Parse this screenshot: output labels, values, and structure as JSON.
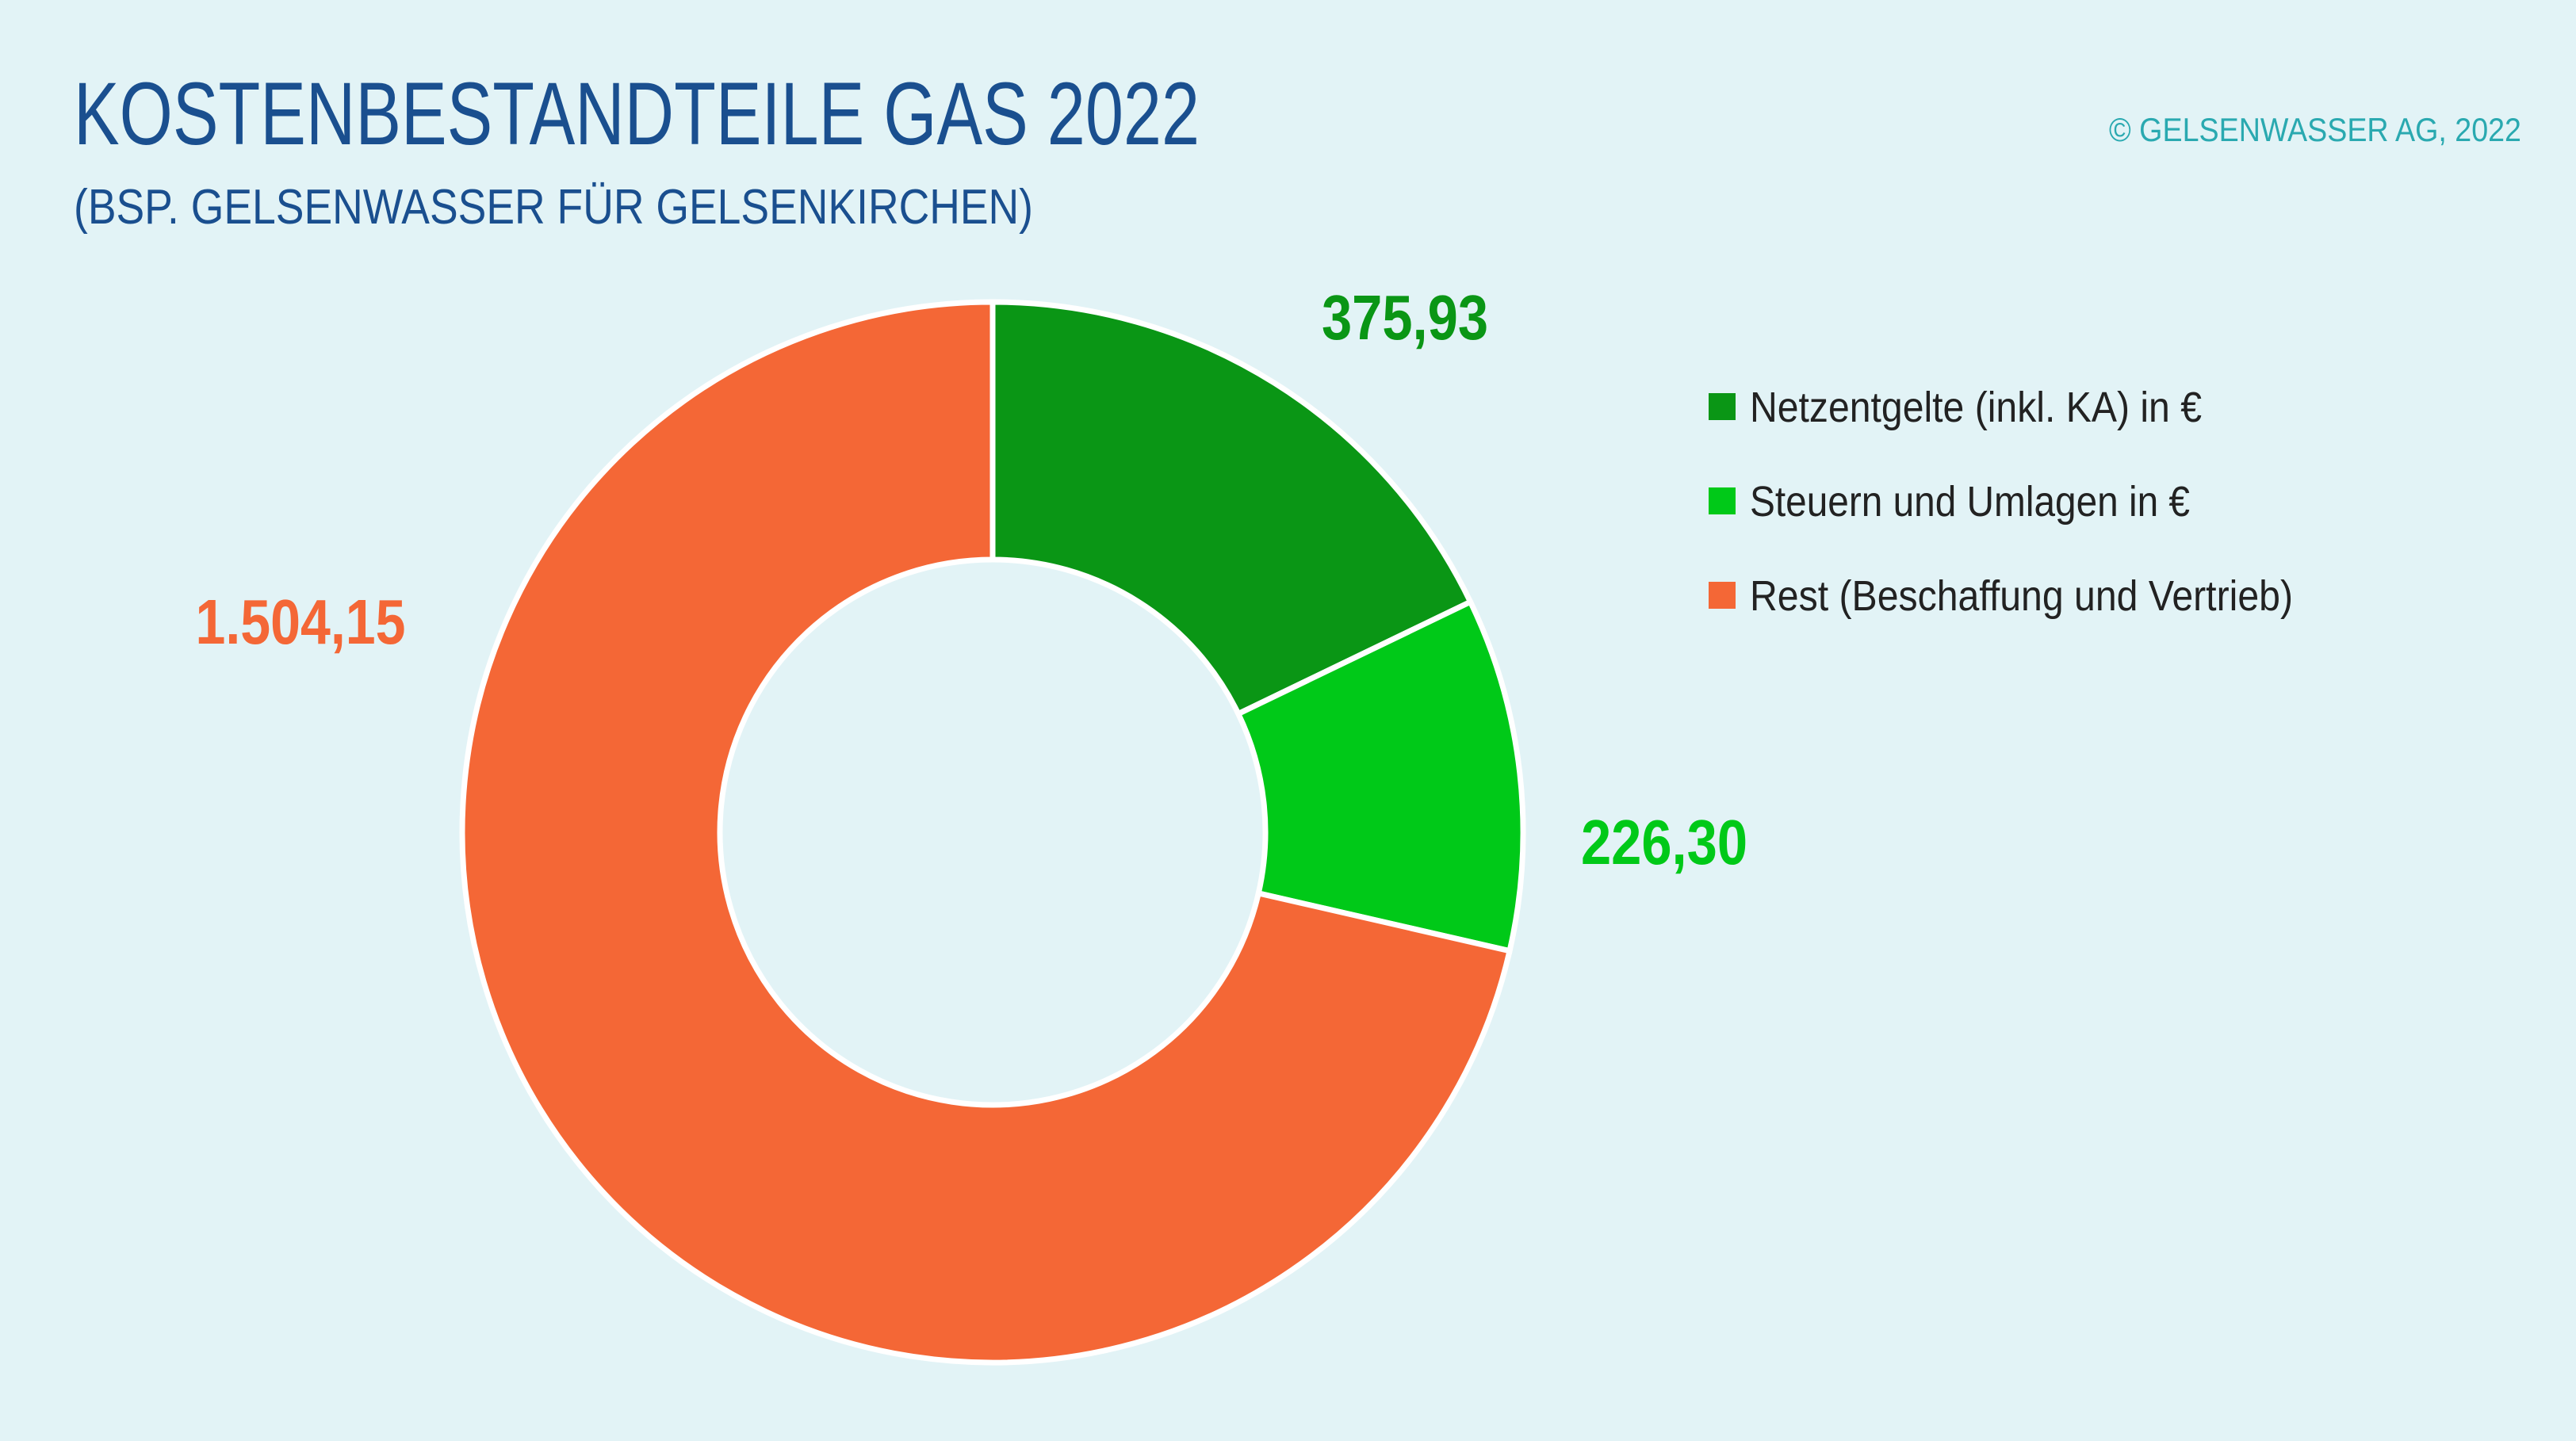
{
  "chart_data": {
    "type": "donut",
    "title": "KOSTENBESTANDTEILE GAS 2022",
    "subtitle": "(BSP. GELSENWASSER FÜR GELSENKIRCHEN)",
    "source": "© GELSENWASSER AG, 2022",
    "categories": [
      "Netzentgelte (inkl. KA) in €",
      "Steuern und Umlagen in €",
      "Rest (Beschaffung und Vertrieb)"
    ],
    "values": [
      375.93,
      226.3,
      1504.15
    ],
    "value_labels": [
      "375,93",
      "226,30",
      "1.504,15"
    ],
    "colors": [
      "#0a9615",
      "#00c918",
      "#f46736"
    ],
    "legend": "right"
  }
}
